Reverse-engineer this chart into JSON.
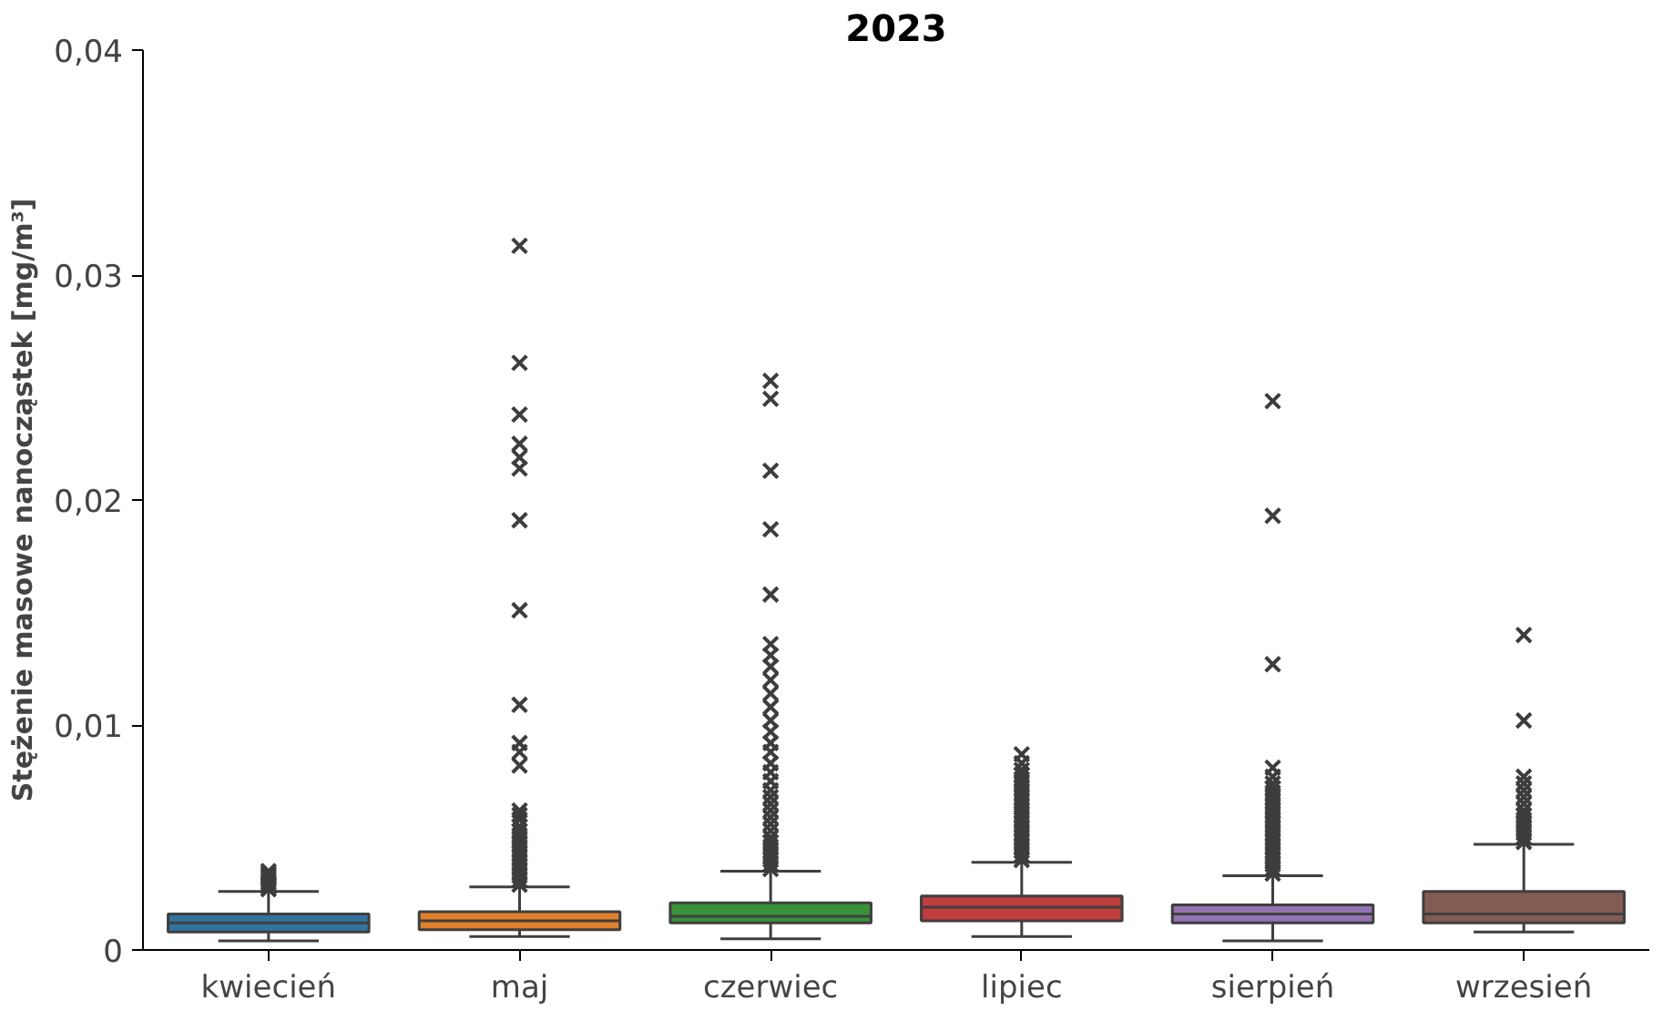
{
  "chart_data": {
    "type": "box",
    "title": "2023",
    "ylabel": "Stężenie masowe nanocząstek [mg/m³]",
    "categories": [
      "kwiecień",
      "maj",
      "czerwiec",
      "lipiec",
      "sierpień",
      "wrzesień"
    ],
    "ylim": [
      0,
      0.04
    ],
    "yticks": [
      0,
      {
        "value": 0.01,
        "label": "0,01"
      },
      {
        "value": 0.02,
        "label": "0,02"
      },
      {
        "value": 0.03,
        "label": "0,03"
      },
      {
        "value": 0.04,
        "label": "0,04"
      }
    ],
    "grid": false,
    "marker": "cross",
    "colors": [
      "#3274a1",
      "#e1812c",
      "#3a923a",
      "#c03d3e",
      "#9372b2",
      "#845b53"
    ],
    "boxes": [
      {
        "low": 0.0004,
        "q1": 0.0008,
        "median": 0.0012,
        "q3": 0.0016,
        "high": 0.0026,
        "outliers": [
          0.0027,
          0.0028,
          0.0029,
          0.003,
          0.0031,
          0.0032,
          0.0033,
          0.0034,
          0.0035
        ]
      },
      {
        "low": 0.0006,
        "q1": 0.0009,
        "median": 0.0013,
        "q3": 0.0017,
        "high": 0.0028,
        "outliers": [
          0.0029,
          0.0031,
          0.0033,
          0.0035,
          0.0037,
          0.0039,
          0.0041,
          0.0043,
          0.0045,
          0.0047,
          0.0049,
          0.0051,
          0.0053,
          0.0055,
          0.0058,
          0.006,
          0.0062,
          0.0082,
          0.0088,
          0.0092,
          0.0109,
          0.0151,
          0.0191,
          0.0214,
          0.0219,
          0.0225,
          0.0238,
          0.0261,
          0.0313
        ]
      },
      {
        "low": 0.0005,
        "q1": 0.0012,
        "median": 0.0015,
        "q3": 0.0021,
        "high": 0.0035,
        "outliers": [
          0.0036,
          0.0038,
          0.004,
          0.0042,
          0.0044,
          0.0046,
          0.0048,
          0.005,
          0.0053,
          0.0056,
          0.0059,
          0.0062,
          0.0065,
          0.0068,
          0.0071,
          0.0075,
          0.0079,
          0.0083,
          0.0088,
          0.0092,
          0.0097,
          0.0102,
          0.0108,
          0.0114,
          0.012,
          0.0126,
          0.0131,
          0.0136,
          0.0158,
          0.0187,
          0.0213,
          0.0245,
          0.0253
        ]
      },
      {
        "low": 0.0006,
        "q1": 0.0013,
        "median": 0.0019,
        "q3": 0.0024,
        "high": 0.0039,
        "outliers": [
          0.004,
          0.0042,
          0.0044,
          0.0046,
          0.0048,
          0.005,
          0.0052,
          0.0054,
          0.0056,
          0.0058,
          0.006,
          0.0062,
          0.0064,
          0.0066,
          0.0068,
          0.007,
          0.0072,
          0.0074,
          0.0076,
          0.0078,
          0.008,
          0.0083,
          0.0087
        ]
      },
      {
        "low": 0.0004,
        "q1": 0.0012,
        "median": 0.0016,
        "q3": 0.002,
        "high": 0.0033,
        "outliers": [
          0.0034,
          0.0036,
          0.0038,
          0.004,
          0.0042,
          0.0044,
          0.0046,
          0.0048,
          0.005,
          0.0052,
          0.0054,
          0.0056,
          0.0058,
          0.006,
          0.0062,
          0.0064,
          0.0066,
          0.0068,
          0.007,
          0.0072,
          0.0074,
          0.0077,
          0.0081,
          0.0127,
          0.0193,
          0.0244
        ]
      },
      {
        "low": 0.0008,
        "q1": 0.0012,
        "median": 0.0016,
        "q3": 0.0026,
        "high": 0.0047,
        "outliers": [
          0.0048,
          0.005,
          0.0052,
          0.0054,
          0.0056,
          0.0058,
          0.006,
          0.0062,
          0.0065,
          0.0068,
          0.0071,
          0.0074,
          0.0077,
          0.0102,
          0.014
        ]
      }
    ]
  }
}
